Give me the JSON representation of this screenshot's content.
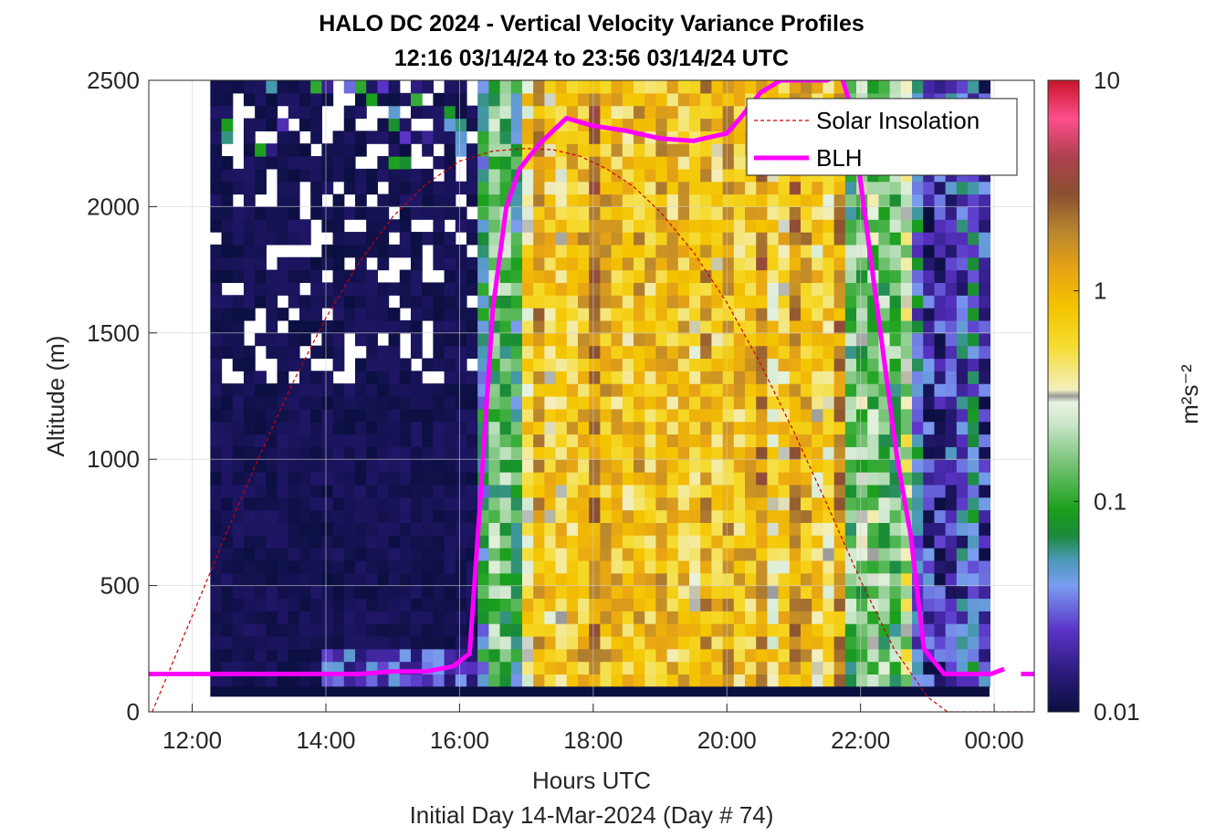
{
  "chart_data": {
    "type": "heatmap",
    "title": "HALO DC 2024 - Vertical Velocity Variance Profiles",
    "subtitle": "12:16 03/14/24 to 23:56 03/14/24  UTC",
    "xlabel": "Hours UTC",
    "xlabel2": "Initial Day 14-Mar-2024 (Day # 74)",
    "ylabel": "Altitude (m)",
    "colorbar_label": "m²s⁻²",
    "colorbar_scale": "log",
    "colorbar_range": [
      0.01,
      10
    ],
    "colorbar_ticks": [
      {
        "v": 0.01,
        "label": "0.01"
      },
      {
        "v": 0.1,
        "label": "0.1"
      },
      {
        "v": 1,
        "label": "1"
      },
      {
        "v": 10,
        "label": "10"
      }
    ],
    "xlim": [
      11.35,
      24.6
    ],
    "ylim": [
      0,
      2500
    ],
    "x_ticks": [
      {
        "v": 12,
        "label": "12:00"
      },
      {
        "v": 14,
        "label": "14:00"
      },
      {
        "v": 16,
        "label": "16:00"
      },
      {
        "v": 18,
        "label": "18:00"
      },
      {
        "v": 20,
        "label": "20:00"
      },
      {
        "v": 22,
        "label": "22:00"
      },
      {
        "v": 24,
        "label": "00:00"
      }
    ],
    "y_ticks": [
      0,
      500,
      1000,
      1500,
      2000,
      2500
    ],
    "grid": true,
    "legend_placement": "top-right",
    "data_time_range": [
      12.27,
      23.93
    ],
    "data_altitude_range": [
      100,
      2500
    ],
    "cell_height_m": 50,
    "segments": [
      {
        "x_start": 12.27,
        "x_end": 16.2,
        "mean_variance": 0.01,
        "note": "night - uniformly low, some missing cells aloft"
      },
      {
        "x_start": 16.2,
        "x_end": 16.9,
        "mean_variance": 0.08
      },
      {
        "x_start": 16.9,
        "x_end": 21.8,
        "mean_variance": 0.9
      },
      {
        "x_start": 21.8,
        "x_end": 22.8,
        "mean_variance": 0.15
      },
      {
        "x_start": 22.8,
        "x_end": 23.93,
        "mean_variance": 0.03
      }
    ],
    "series": [
      {
        "name": "Solar Insolation",
        "style": "dashed",
        "color": "#cc0000",
        "relative_to_axis": "altitude axis (scaled)",
        "x": [
          11.4,
          12.0,
          12.5,
          13.0,
          13.5,
          14.0,
          14.5,
          15.0,
          15.5,
          16.0,
          16.5,
          17.0,
          17.4,
          17.8,
          18.2,
          18.6,
          19.0,
          19.5,
          20.0,
          20.5,
          21.0,
          21.5,
          22.0,
          22.5,
          23.0,
          23.3,
          23.5,
          24.0,
          24.6
        ],
        "y": [
          0,
          380,
          700,
          1010,
          1300,
          1560,
          1780,
          1960,
          2090,
          2180,
          2220,
          2230,
          2225,
          2200,
          2150,
          2080,
          1980,
          1820,
          1620,
          1380,
          1110,
          820,
          520,
          250,
          60,
          0,
          0,
          0,
          0
        ]
      },
      {
        "name": "BLH",
        "style": "solid",
        "color": "#ff00ff",
        "x": [
          11.35,
          12.0,
          13.0,
          14.0,
          14.5,
          15.0,
          15.5,
          15.9,
          16.15,
          16.3,
          16.5,
          16.7,
          16.9,
          17.2,
          17.6,
          18.0,
          18.5,
          19.0,
          19.5,
          20.0,
          20.2,
          20.5,
          20.8,
          21.2,
          21.5,
          21.7,
          21.85,
          22.05,
          22.3,
          22.55,
          22.75,
          22.95,
          23.25,
          23.65,
          23.95,
          24.15
        ],
        "y": [
          150,
          150,
          150,
          150,
          150,
          160,
          160,
          180,
          230,
          800,
          1600,
          2000,
          2150,
          2250,
          2350,
          2320,
          2300,
          2270,
          2260,
          2290,
          2350,
          2450,
          2500,
          2500,
          2500,
          2530,
          2400,
          2000,
          1500,
          1000,
          700,
          250,
          150,
          150,
          150,
          170
        ]
      },
      {
        "name": "BLH-isolated",
        "legend": false,
        "color": "#ff00ff",
        "x": [
          24.4,
          24.6
        ],
        "y": [
          150,
          150
        ]
      }
    ]
  }
}
